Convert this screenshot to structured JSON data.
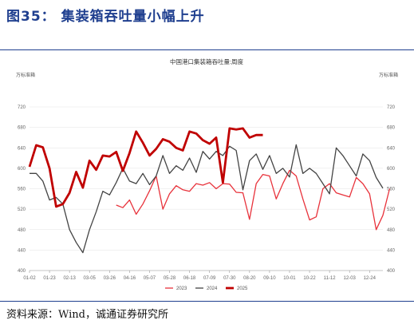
{
  "figure_title": "图35：  集装箱吞吐量小幅上升",
  "source_note": "资料来源：Wind，诚通证券研究所",
  "colors": {
    "title": "#1f3f8f",
    "s2023": "#e8323b",
    "s2024": "#444444",
    "s2025": "#c00000",
    "grid": "#e3e3e3"
  },
  "chart_data": {
    "type": "line",
    "title": "中国港口集装箱吞吐量:周度",
    "left_unit": "万标准箱",
    "right_unit": "万标准箱",
    "ylim": [
      400,
      720
    ],
    "yticks": [
      400,
      440,
      480,
      520,
      560,
      600,
      640,
      680,
      720
    ],
    "grid": true,
    "legend_position": "bottom",
    "x_tick_labels": [
      "01-02",
      "01-23",
      "02-13",
      "03-05",
      "03-26",
      "04-16",
      "05-07",
      "05-28",
      "06-18",
      "07-09",
      "07-30",
      "08-20",
      "09-10",
      "10-01",
      "10-22",
      "11-12",
      "12-03",
      "12-24"
    ],
    "series": [
      {
        "name": "2023",
        "start_week": 13,
        "values": [
          528,
          523,
          538,
          510,
          530,
          556,
          585,
          520,
          550,
          566,
          558,
          555,
          570,
          567,
          572,
          560,
          570,
          569,
          553,
          552,
          500,
          570,
          588,
          585,
          540,
          570,
          596,
          585,
          540,
          499,
          505,
          560,
          570,
          552,
          548,
          544,
          582,
          570,
          550,
          480,
          508,
          560
        ]
      },
      {
        "name": "2024",
        "start_week": 0,
        "values": [
          590,
          590,
          575,
          538,
          543,
          530,
          480,
          455,
          435,
          480,
          515,
          555,
          548,
          572,
          600,
          575,
          570,
          590,
          568,
          585,
          625,
          590,
          605,
          596,
          620,
          592,
          633,
          618,
          633,
          625,
          643,
          635,
          558,
          615,
          628,
          598,
          625,
          590,
          600,
          583,
          646,
          590,
          600,
          590,
          570,
          550,
          640,
          625,
          605,
          585,
          628,
          615,
          582,
          561
        ]
      },
      {
        "name": "2025",
        "start_week": 0,
        "values": [
          603,
          645,
          641,
          600,
          525,
          530,
          552,
          593,
          562,
          615,
          597,
          625,
          623,
          632,
          595,
          630,
          672,
          650,
          625,
          638,
          657,
          652,
          640,
          635,
          672,
          668,
          655,
          648,
          660,
          572,
          678,
          676,
          678,
          660,
          665,
          665
        ]
      }
    ]
  }
}
